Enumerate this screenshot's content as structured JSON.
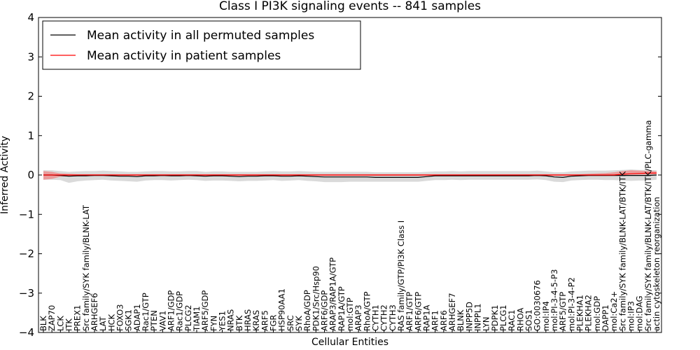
{
  "chart_data": {
    "type": "line",
    "title": "Class I PI3K signaling events -- 841 samples",
    "xlabel": "Cellular Entities",
    "ylabel": "Inferred Activity",
    "ylim": [
      -4,
      4
    ],
    "yticks": [
      "4",
      "3",
      "2",
      "1",
      "0",
      "−1",
      "−2",
      "−3",
      "−4"
    ],
    "grid": false,
    "legend_position": "top-left",
    "categories": [
      "BLK",
      "ZAP70",
      "LCK",
      "ITK",
      "PREX1",
      "Src family/SYK family/BLNK-LAT",
      "ARHGEF6",
      "LAT",
      "HCK",
      "FOXO3",
      "SGK1",
      "ADAP1",
      "Rac1/GTP",
      "PTEN",
      "VAV1",
      "ARF1/GDP",
      "Rac1/GDP",
      "PLCG2",
      "TIAM1",
      "ARF5/GDP",
      "FYN",
      "YES1",
      "NRAS",
      "BTK",
      "HRAS",
      "KRAS",
      "ARF5",
      "FGR",
      "HSP90AA1",
      "SRC",
      "SYK",
      "RhoA/GDP",
      "PDK1/Src/Hsp90",
      "ARF6/GDP",
      "ARAP3/RAP1A/GTP",
      "RAP1A/GTP",
      "mol:GTP",
      "ARAP3",
      "RhoA/GTP",
      "CYTH1",
      "CYTH2",
      "CYTH3",
      "RAS family/GTP/PI3K Class I",
      "ARF1/GTP",
      "ARF6/GTP",
      "RAP1A",
      "ARF1",
      "ARF6",
      "ARHGEF7",
      "BLNK",
      "INPP5D",
      "INPPL1",
      "LYN",
      "PDPK1",
      "PLCG1",
      "RAC1",
      "RHOA",
      "SOS1",
      "GO:0030676",
      "mol:IP4",
      "mol:PI-3-4-5-P3",
      "ARF5/GTP",
      "mol:PI-3-4-P2",
      "PLEKHA1",
      "PLEKHA2",
      "mol:GDP",
      "DAPP1",
      "mol:Ca2+",
      "Src family/SYK family/BLNK-LAT/BTK/ITK",
      "mol:IP3",
      "mol:DAG",
      "Src family/SYK family/BLNK-LAT/BTK/ITK/PLC-gamma",
      "actin cytoskeleton reorganization"
    ],
    "series": [
      {
        "name": "Mean activity in all permuted samples",
        "color": "#000000",
        "band_color": "#bbbbbb",
        "values": [
          0,
          0,
          -0.01,
          -0.03,
          -0.02,
          -0.02,
          -0.01,
          -0.01,
          -0.02,
          -0.03,
          -0.03,
          -0.04,
          -0.02,
          -0.02,
          -0.01,
          -0.02,
          -0.02,
          -0.01,
          -0.02,
          -0.03,
          -0.02,
          -0.02,
          -0.03,
          -0.04,
          -0.03,
          -0.03,
          -0.02,
          -0.02,
          -0.03,
          -0.03,
          -0.02,
          -0.03,
          -0.04,
          -0.05,
          -0.05,
          -0.05,
          -0.05,
          -0.05,
          -0.05,
          -0.06,
          -0.06,
          -0.06,
          -0.06,
          -0.06,
          -0.06,
          -0.04,
          -0.02,
          -0.02,
          -0.02,
          -0.02,
          -0.02,
          -0.02,
          -0.02,
          -0.02,
          -0.02,
          -0.02,
          -0.02,
          -0.02,
          -0.01,
          -0.02,
          -0.05,
          -0.06,
          -0.03,
          -0.02,
          -0.01,
          -0.01,
          -0.01,
          -0.01,
          -0.01,
          -0.01,
          -0.01,
          -0.01,
          0
        ],
        "lower": [
          -0.12,
          -0.12,
          -0.13,
          -0.2,
          -0.16,
          -0.14,
          -0.13,
          -0.12,
          -0.14,
          -0.15,
          -0.16,
          -0.17,
          -0.14,
          -0.13,
          -0.13,
          -0.14,
          -0.13,
          -0.12,
          -0.13,
          -0.15,
          -0.14,
          -0.14,
          -0.15,
          -0.16,
          -0.15,
          -0.15,
          -0.14,
          -0.13,
          -0.15,
          -0.14,
          -0.13,
          -0.15,
          -0.16,
          -0.18,
          -0.18,
          -0.18,
          -0.17,
          -0.17,
          -0.17,
          -0.17,
          -0.17,
          -0.17,
          -0.17,
          -0.17,
          -0.17,
          -0.15,
          -0.13,
          -0.13,
          -0.12,
          -0.13,
          -0.12,
          -0.12,
          -0.12,
          -0.12,
          -0.12,
          -0.12,
          -0.12,
          -0.12,
          -0.11,
          -0.13,
          -0.17,
          -0.18,
          -0.14,
          -0.13,
          -0.12,
          -0.12,
          -0.13,
          -0.13,
          -0.14,
          -0.15,
          -0.14,
          -0.14,
          -0.12
        ],
        "upper": [
          0.12,
          0.12,
          0.1,
          0.08,
          0.09,
          0.1,
          0.1,
          0.11,
          0.1,
          0.09,
          0.08,
          0.08,
          0.09,
          0.1,
          0.1,
          0.09,
          0.09,
          0.1,
          0.1,
          0.08,
          0.09,
          0.09,
          0.08,
          0.08,
          0.08,
          0.08,
          0.09,
          0.1,
          0.09,
          0.09,
          0.1,
          0.09,
          0.08,
          0.08,
          0.08,
          0.08,
          0.08,
          0.08,
          0.08,
          0.07,
          0.07,
          0.07,
          0.07,
          0.07,
          0.07,
          0.08,
          0.09,
          0.09,
          0.1,
          0.09,
          0.1,
          0.1,
          0.1,
          0.1,
          0.1,
          0.1,
          0.1,
          0.1,
          0.11,
          0.09,
          0.07,
          0.07,
          0.09,
          0.1,
          0.11,
          0.11,
          0.11,
          0.12,
          0.13,
          0.14,
          0.13,
          0.13,
          0.12
        ]
      },
      {
        "name": "Mean activity in patient samples",
        "color": "#ff0000",
        "band_color": "#f08080",
        "values": [
          0,
          0,
          0,
          0,
          0,
          0,
          0,
          0,
          0,
          0,
          0,
          0,
          0,
          0,
          0,
          0,
          0,
          0,
          0,
          0,
          0,
          0,
          0,
          0,
          0,
          0,
          0,
          0,
          0,
          0,
          0,
          0,
          0,
          0,
          0,
          0,
          0,
          0,
          0,
          0,
          0,
          0,
          0,
          0,
          0,
          0,
          0,
          0,
          0,
          0,
          0,
          0,
          0,
          0,
          0,
          0,
          0,
          0,
          0,
          0,
          0,
          0,
          0,
          0,
          0,
          0,
          0,
          0,
          0.02,
          0.03,
          0.04,
          0.05,
          0.05
        ],
        "lower": [
          -0.12,
          -0.1,
          -0.04,
          -0.03,
          -0.02,
          -0.02,
          -0.02,
          -0.02,
          -0.02,
          -0.02,
          -0.02,
          -0.02,
          -0.02,
          -0.02,
          -0.02,
          -0.02,
          -0.02,
          -0.02,
          -0.02,
          -0.02,
          -0.02,
          -0.02,
          -0.02,
          -0.02,
          -0.02,
          -0.02,
          -0.02,
          -0.02,
          -0.02,
          -0.02,
          -0.02,
          -0.02,
          -0.02,
          -0.02,
          -0.02,
          -0.02,
          -0.02,
          -0.02,
          -0.02,
          -0.02,
          -0.02,
          -0.02,
          -0.02,
          -0.02,
          -0.02,
          -0.02,
          -0.02,
          -0.02,
          -0.02,
          -0.02,
          -0.02,
          -0.02,
          -0.02,
          -0.02,
          -0.02,
          -0.02,
          -0.02,
          -0.02,
          -0.02,
          -0.02,
          -0.02,
          -0.02,
          -0.02,
          -0.02,
          -0.02,
          -0.02,
          -0.02,
          -0.01,
          0,
          0.01,
          0.01,
          0.01,
          0.02
        ],
        "upper": [
          0.1,
          0.08,
          0.04,
          0.03,
          0.02,
          0.02,
          0.02,
          0.02,
          0.02,
          0.02,
          0.02,
          0.02,
          0.02,
          0.02,
          0.02,
          0.02,
          0.02,
          0.02,
          0.02,
          0.02,
          0.02,
          0.02,
          0.02,
          0.02,
          0.02,
          0.02,
          0.02,
          0.02,
          0.02,
          0.02,
          0.02,
          0.02,
          0.02,
          0.02,
          0.02,
          0.02,
          0.02,
          0.02,
          0.02,
          0.02,
          0.02,
          0.02,
          0.02,
          0.02,
          0.02,
          0.02,
          0.02,
          0.02,
          0.02,
          0.02,
          0.02,
          0.02,
          0.02,
          0.02,
          0.02,
          0.02,
          0.02,
          0.02,
          0.02,
          0.02,
          0.02,
          0.02,
          0.02,
          0.02,
          0.03,
          0.04,
          0.05,
          0.07,
          0.1,
          0.12,
          0.11,
          0.1,
          0.09
        ]
      }
    ]
  }
}
